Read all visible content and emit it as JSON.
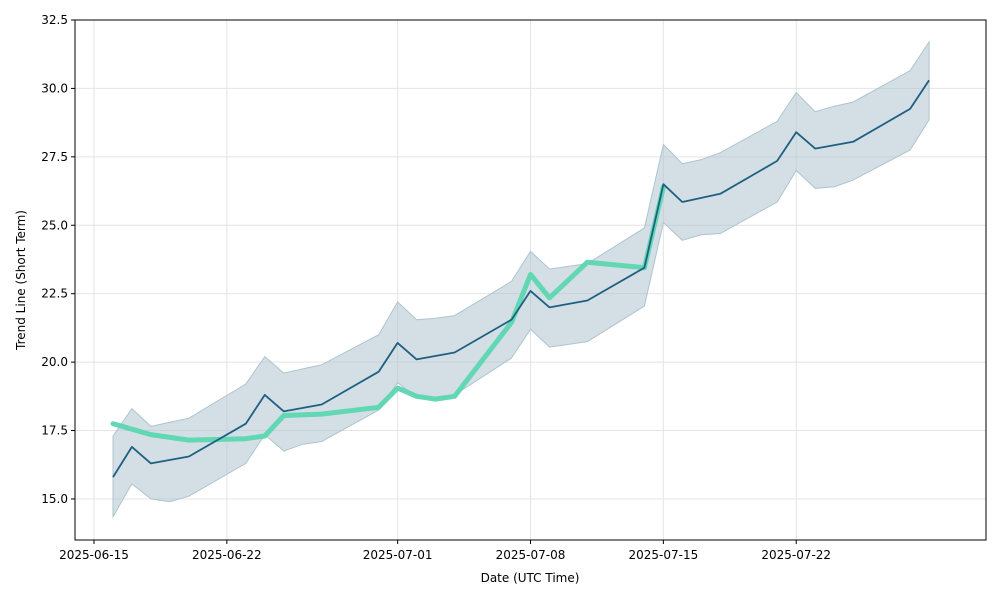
{
  "chart_data": {
    "type": "line",
    "xlabel": "Date (UTC Time)",
    "ylabel": "Trend Line (Short Term)",
    "x_type": "date",
    "xlim": [
      "2025-06-14",
      "2025-08-01"
    ],
    "ylim": [
      13.5,
      32.5
    ],
    "grid": true,
    "x_ticks": [
      "2025-06-15",
      "2025-06-22",
      "2025-07-01",
      "2025-07-08",
      "2025-07-15",
      "2025-07-22"
    ],
    "y_ticks": [
      15.0,
      17.5,
      20.0,
      22.5,
      25.0,
      27.5,
      30.0,
      32.5
    ],
    "y_tick_labels": [
      "15.0",
      "17.5",
      "20.0",
      "22.5",
      "25.0",
      "27.5",
      "30.0",
      "32.5"
    ],
    "colors": {
      "line": "#1f5f82",
      "band": "#aec4cf",
      "highlight": "#5cd6b0",
      "grid": "#e4e4e4"
    },
    "series": [
      {
        "role": "trend-line",
        "x": [
          "2025-06-16",
          "2025-06-17",
          "2025-06-18",
          "2025-06-20",
          "2025-06-23",
          "2025-06-24",
          "2025-06-25",
          "2025-06-27",
          "2025-06-30",
          "2025-07-01",
          "2025-07-02",
          "2025-07-04",
          "2025-07-07",
          "2025-07-08",
          "2025-07-09",
          "2025-07-11",
          "2025-07-14",
          "2025-07-15",
          "2025-07-16",
          "2025-07-18",
          "2025-07-21",
          "2025-07-22",
          "2025-07-23",
          "2025-07-25",
          "2025-07-28",
          "2025-07-29"
        ],
        "values": [
          15.8,
          16.9,
          16.3,
          16.55,
          17.75,
          18.8,
          18.2,
          18.45,
          19.65,
          20.7,
          20.1,
          20.35,
          21.55,
          22.6,
          22.0,
          22.25,
          23.45,
          26.5,
          25.85,
          26.15,
          27.35,
          28.4,
          27.8,
          28.05,
          29.25,
          30.3
        ]
      },
      {
        "role": "confidence-band",
        "x": [
          "2025-06-16",
          "2025-06-17",
          "2025-06-18",
          "2025-06-19",
          "2025-06-20",
          "2025-06-23",
          "2025-06-24",
          "2025-06-25",
          "2025-06-26",
          "2025-06-27",
          "2025-06-30",
          "2025-07-01",
          "2025-07-02",
          "2025-07-03",
          "2025-07-04",
          "2025-07-07",
          "2025-07-08",
          "2025-07-09",
          "2025-07-11",
          "2025-07-14",
          "2025-07-15",
          "2025-07-16",
          "2025-07-17",
          "2025-07-18",
          "2025-07-21",
          "2025-07-22",
          "2025-07-23",
          "2025-07-24",
          "2025-07-25",
          "2025-07-28",
          "2025-07-29"
        ],
        "upper": [
          17.3,
          18.3,
          17.65,
          17.8,
          17.95,
          19.2,
          20.2,
          19.6,
          19.75,
          19.9,
          21.0,
          22.2,
          21.55,
          21.6,
          21.7,
          22.95,
          24.05,
          23.4,
          23.6,
          24.9,
          27.95,
          27.25,
          27.4,
          27.65,
          28.8,
          29.85,
          29.15,
          29.35,
          29.5,
          30.65,
          31.7
        ],
        "lower": [
          14.35,
          15.55,
          15.0,
          14.9,
          15.1,
          16.3,
          17.35,
          16.75,
          17.0,
          17.1,
          18.25,
          19.25,
          18.7,
          18.65,
          18.8,
          20.15,
          21.2,
          20.55,
          20.75,
          22.05,
          25.1,
          24.45,
          24.65,
          24.7,
          25.85,
          27.0,
          26.35,
          26.4,
          26.65,
          27.75,
          28.85
        ]
      },
      {
        "role": "highlighted-segment",
        "x": [
          "2025-06-16",
          "2025-06-18",
          "2025-06-20",
          "2025-06-23",
          "2025-06-24",
          "2025-06-25",
          "2025-06-27",
          "2025-06-30",
          "2025-07-01",
          "2025-07-02",
          "2025-07-03",
          "2025-07-04",
          "2025-07-07",
          "2025-07-08",
          "2025-07-09",
          "2025-07-11",
          "2025-07-14",
          "2025-07-15"
        ],
        "values": [
          17.75,
          17.35,
          17.15,
          17.2,
          17.3,
          18.05,
          18.1,
          18.35,
          19.05,
          18.75,
          18.65,
          18.75,
          21.45,
          23.2,
          22.35,
          23.65,
          23.45,
          26.4
        ]
      }
    ]
  }
}
